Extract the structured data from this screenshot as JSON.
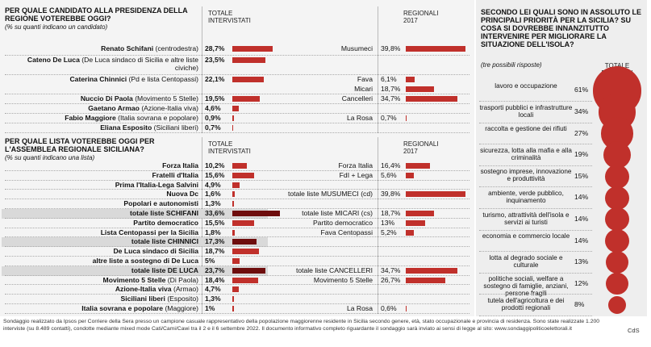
{
  "candidates": {
    "title": "PER QUALE CANDIDATO ALLA PRESIDENZA DELLA REGIONE VOTEREBBE OGGI?",
    "subtitle": "(% su quanti indicano un candidato)",
    "col_total": "TOTALE INTERVISTATI",
    "col_2017": "REGIONALI 2017",
    "rows": [
      {
        "name": "Renato Schifani",
        "detail": "(centrodestra)",
        "value": 28.7,
        "value_label": "28,7%"
      },
      {
        "name": "Cateno De Luca",
        "detail": "(De Luca sindaco di Sicilia e altre liste civiche)",
        "value": 23.5,
        "value_label": "23,5%"
      },
      {
        "name": "Caterina Chinnici",
        "detail": "(Pd e lista Centopassi)",
        "value": 22.1,
        "value_label": "22,1%"
      },
      {
        "name": "Nuccio Di Paola",
        "detail": "(Movimento 5 Stelle)",
        "value": 19.5,
        "value_label": "19,5%"
      },
      {
        "name": "Gaetano Armao",
        "detail": "(Azione-Italia viva)",
        "value": 4.6,
        "value_label": "4,6%"
      },
      {
        "name": "Fabio Maggiore",
        "detail": "(Italia sovrana e popolare)",
        "value": 0.9,
        "value_label": "0,9%"
      },
      {
        "name": "Eliana Esposito",
        "detail": "(Siciliani liberi)",
        "value": 0.7,
        "value_label": "0,7%"
      }
    ],
    "regionali_2017": [
      {
        "label": "Musumeci",
        "value": 39.8,
        "value_label": "39,8%"
      },
      {
        "label": "Fava",
        "value": 6.1,
        "value_label": "6,1%"
      },
      {
        "label": "Micari",
        "value": 18.7,
        "value_label": "18,7%"
      },
      {
        "label": "Cancelleri",
        "value": 34.7,
        "value_label": "34,7%"
      },
      {
        "label": "La Rosa",
        "value": 0.7,
        "value_label": "0,7%"
      }
    ]
  },
  "lists": {
    "title": "PER QUALE LISTA VOTEREBBE OGGI PER L'ASSEMBLEA REGIONALE SICILIANA?",
    "subtitle": "(% su quanti indicano una lista)",
    "col_total": "TOTALE INTERVISTATI",
    "col_2017": "REGIONALI 2017",
    "rows": [
      {
        "name": "Forza Italia",
        "value": 10.2,
        "value_label": "10,2%"
      },
      {
        "name": "Fratelli d'Italia",
        "value": 15.6,
        "value_label": "15,6%"
      },
      {
        "name": "Prima l'Italia-Lega Salvini",
        "value": 4.9,
        "value_label": "4,9%"
      },
      {
        "name": "Nuova Dc",
        "value": 1.6,
        "value_label": "1,6%"
      },
      {
        "name": "Popolari e autonomisti",
        "value": 1.3,
        "value_label": "1,3%"
      },
      {
        "name": "totale liste SCHIFANI",
        "value": 33.6,
        "value_label": "33,6%",
        "total": true
      },
      {
        "name": "Partito democratico",
        "value": 15.5,
        "value_label": "15,5%"
      },
      {
        "name": "Lista Centopassi per la Sicilia",
        "value": 1.8,
        "value_label": "1,8%"
      },
      {
        "name": "totale liste CHINNICI",
        "value": 17.3,
        "value_label": "17,3%",
        "total": true
      },
      {
        "name": "De Luca sindaco di Sicilia",
        "value": 18.7,
        "value_label": "18,7%"
      },
      {
        "name": "altre liste a sostegno di De Luca",
        "value": 5,
        "value_label": "5%"
      },
      {
        "name": "totale liste DE LUCA",
        "value": 23.7,
        "value_label": "23,7%",
        "total": true
      },
      {
        "name": "Movimento 5 Stelle",
        "detail": "(Di Paola)",
        "value": 18.4,
        "value_label": "18,4%"
      },
      {
        "name": "Azione-Italia viva",
        "detail": "(Armao)",
        "value": 4.7,
        "value_label": "4,7%"
      },
      {
        "name": "Siciliani liberi",
        "detail": "(Esposito)",
        "value": 1.3,
        "value_label": "1,3%"
      },
      {
        "name": "Italia sovrana e popolare",
        "detail": "(Maggiore)",
        "value": 1,
        "value_label": "1%"
      }
    ],
    "regionali_2017": [
      {
        "label": "Forza Italia",
        "value": 16.4,
        "value_label": "16,4%"
      },
      {
        "label": "FdI + Lega",
        "value": 5.6,
        "value_label": "5,6%"
      },
      {
        "label": "totale liste MUSUMECI (cd)",
        "value": 39.8,
        "value_label": "39,8%"
      },
      {
        "label": "totale liste MICARI (cs)",
        "value": 18.7,
        "value_label": "18,7%"
      },
      {
        "label": "Partito democratico",
        "value": 13,
        "value_label": "13%"
      },
      {
        "label": "Fava Centopassi",
        "value": 5.2,
        "value_label": "5,2%"
      },
      {
        "label": "totale liste CANCELLERI",
        "value": 34.7,
        "value_label": "34,7%"
      },
      {
        "label": "Movimento 5 Stelle",
        "value": 26.7,
        "value_label": "26,7%"
      },
      {
        "label": "La Rosa",
        "value": 0.6,
        "value_label": "0,6%"
      }
    ]
  },
  "priorities": {
    "title": "SECONDO LEI QUALI SONO IN ASSOLUTO LE PRINCIPALI PRIORITÀ PER LA SICILIA? SU COSA SI DOVREBBE INNANZITUTTO INTERVENIRE PER MIGLIORARE LA SITUAZIONE DELL'ISOLA?",
    "subtitle": "(tre possibili risposte)",
    "col_total": "TOTALE ELETTORI",
    "rows": [
      {
        "label": "lavoro e occupazione",
        "value": 61,
        "value_label": "61%"
      },
      {
        "label": "trasporti pubblici e infrastrutture locali",
        "value": 34,
        "value_label": "34%"
      },
      {
        "label": "raccolta e gestione dei rifiuti",
        "value": 27,
        "value_label": "27%"
      },
      {
        "label": "sicurezza, lotta alla mafia e alla criminalità",
        "value": 19,
        "value_label": "19%"
      },
      {
        "label": "sostegno imprese, innovazione e produttività",
        "value": 15,
        "value_label": "15%"
      },
      {
        "label": "ambiente, verde pubblico, inquinamento",
        "value": 14,
        "value_label": "14%"
      },
      {
        "label": "turismo, attrattività dell'isola e servizi ai turisti",
        "value": 14,
        "value_label": "14%"
      },
      {
        "label": "economia e commercio locale",
        "value": 14,
        "value_label": "14%"
      },
      {
        "label": "lotta al degrado sociale e culturale",
        "value": 13,
        "value_label": "13%"
      },
      {
        "label": "politiche sociali, welfare a sostegno di famiglie, anziani, persone fragili",
        "value": 12,
        "value_label": "12%"
      },
      {
        "label": "tutela dell'agricoltura e dei prodotti regionali",
        "value": 8,
        "value_label": "8%"
      }
    ]
  },
  "footer": {
    "note": "Sondaggio realizzato da Ipsos per Corriere della Sera presso un campione casuale rappresentativo della popolazione maggiorenne residente in Sicilia secondo genere, età, stato occupazionale e provincia di residenza. Sono state realizzate 1.200 interviste (su 8.489 contatti), condotte mediante mixed mode Cati/Cami/Cawi tra il 2 e il 6 settembre 2022. Il documento informativo completo riguardante il sondaggio sarà inviato ai sensi di legge al sito: www.sondaggipoliticoelettorali.it",
    "credit": "CdS"
  }
}
